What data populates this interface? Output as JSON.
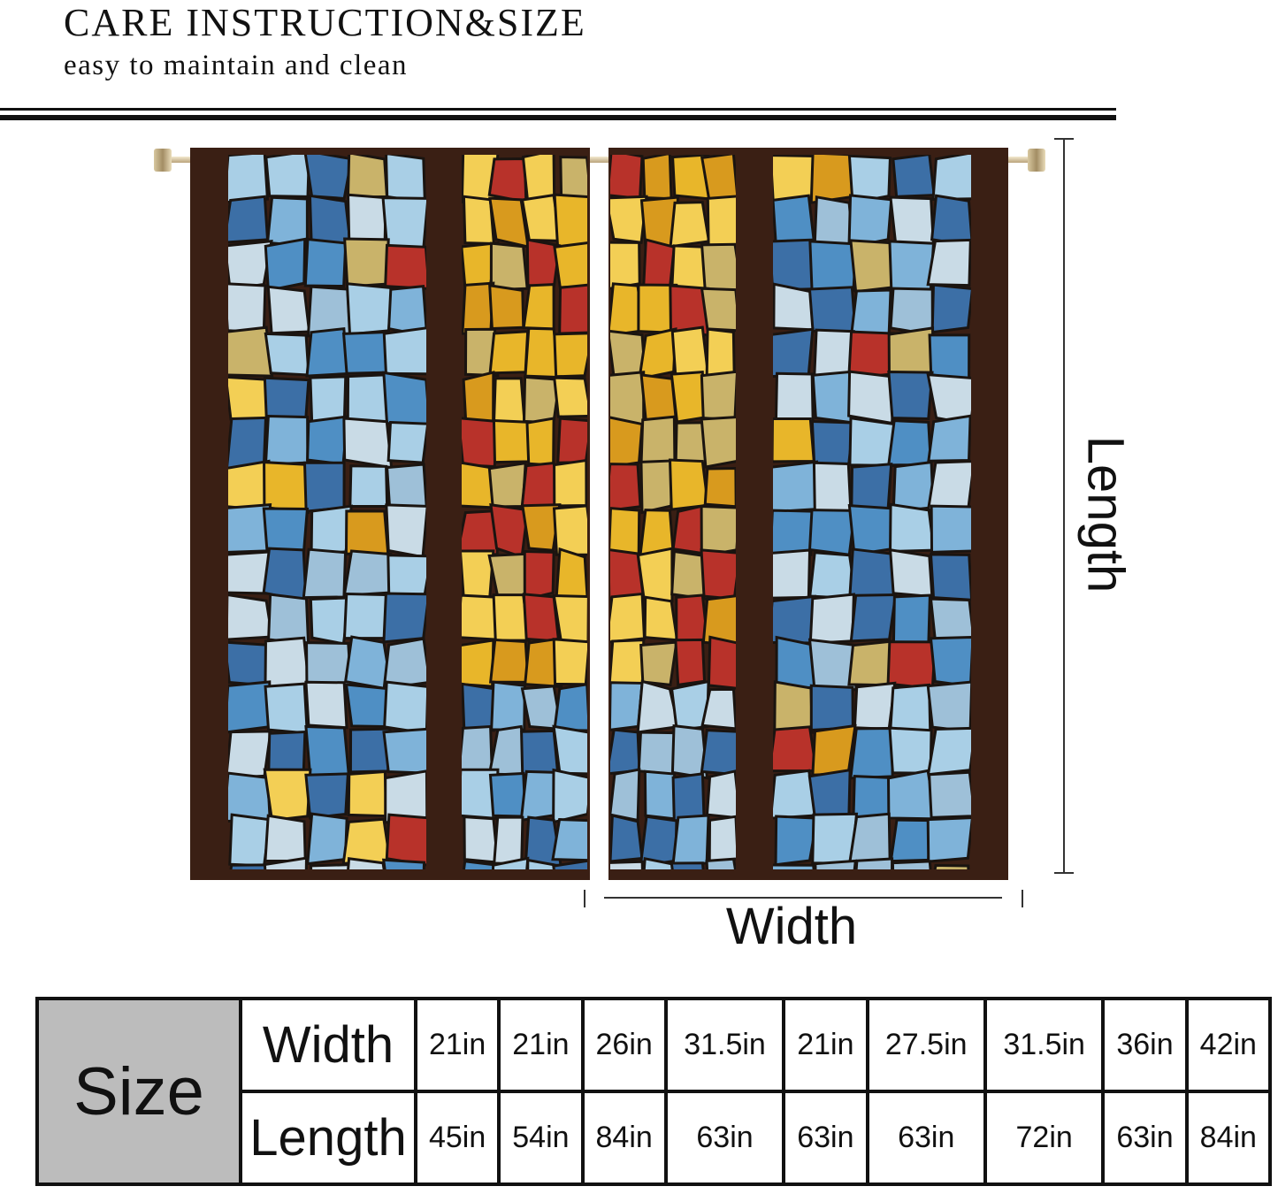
{
  "header": {
    "title": "CARE INSTRUCTION&SIZE",
    "subtitle": "easy to maintain and clean"
  },
  "image": {
    "description_icon": "stained-glass-curtains",
    "colors": {
      "frame": "#3a1f14",
      "blue": "#4f8fc4",
      "yellow": "#e8b62a"
    }
  },
  "dimensions": {
    "length_label": "Length",
    "width_label": "Width"
  },
  "size_table": {
    "header": "Size",
    "rows": [
      {
        "label": "Width",
        "values": [
          "21in",
          "21in",
          "26in",
          "31.5in",
          "21in",
          "27.5in",
          "31.5in",
          "36in",
          "42in"
        ]
      },
      {
        "label": "Length",
        "values": [
          "45in",
          "54in",
          "84in",
          "63in",
          "63in",
          "63in",
          "72in",
          "63in",
          "84in"
        ]
      }
    ]
  }
}
